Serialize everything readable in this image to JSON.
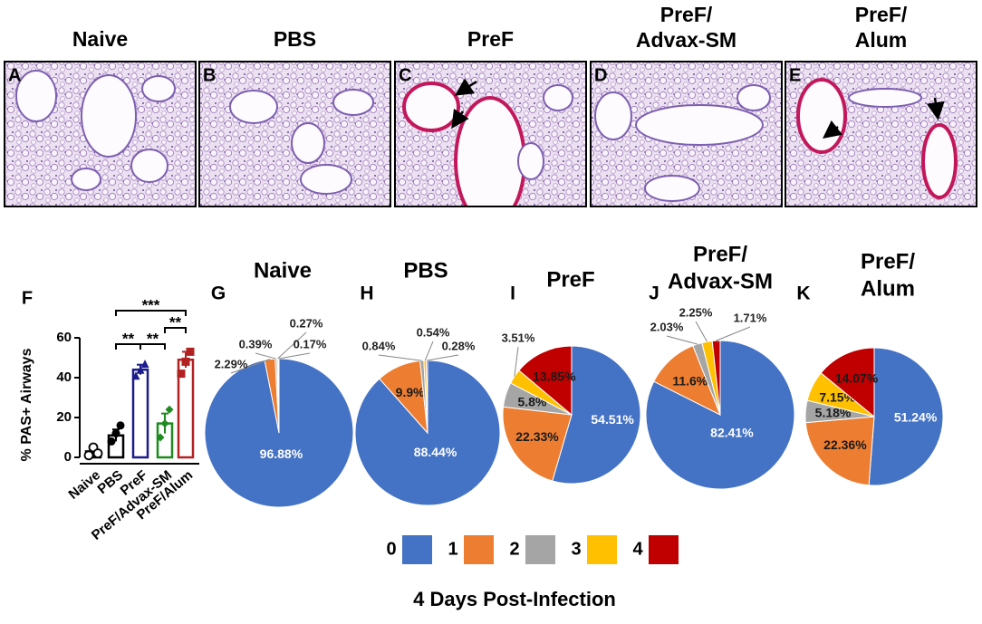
{
  "micrographs": [
    {
      "letter": "A",
      "title": [
        "Naive"
      ]
    },
    {
      "letter": "B",
      "title": [
        "PBS"
      ]
    },
    {
      "letter": "C",
      "title": [
        "PreF"
      ]
    },
    {
      "letter": "D",
      "title": [
        "PreF/",
        "Advax-SM"
      ]
    },
    {
      "letter": "E",
      "title": [
        "PreF/",
        "Alum"
      ]
    }
  ],
  "chart_data": [
    {
      "type": "bar",
      "letter": "F",
      "ylabel": "% PAS+ Airways",
      "categories": [
        "Naive",
        "PBS",
        "PreF",
        "PreF/Advax-SM",
        "PreF/Alum"
      ],
      "values": [
        3,
        11,
        44,
        17,
        49
      ],
      "errors": [
        1.5,
        3,
        2.5,
        5,
        4
      ],
      "points": [
        [
          1,
          5,
          2
        ],
        [
          8,
          12,
          16
        ],
        [
          41,
          44,
          47
        ],
        [
          10,
          17,
          24
        ],
        [
          42,
          48,
          53
        ]
      ],
      "colors": [
        "#000000",
        "#000000",
        "#1c1c8c",
        "#1f8a1f",
        "#b22222"
      ],
      "markers": [
        "open-circle",
        "circle",
        "triangle",
        "diamond",
        "square"
      ],
      "ylim": [
        0,
        60
      ],
      "yticks": [
        0,
        20,
        40,
        60
      ],
      "comparisons": [
        {
          "label": "***",
          "from": "PBS",
          "to": "PreF/Alum"
        },
        {
          "label": "**",
          "from": "PBS",
          "to": "PreF"
        },
        {
          "label": "**",
          "from": "PreF",
          "to": "PreF/Advax-SM"
        },
        {
          "label": "**",
          "from": "PreF/Advax-SM",
          "to": "PreF/Alum"
        }
      ]
    },
    {
      "type": "pie",
      "letter": "G",
      "title": [
        "Naive"
      ],
      "values": [
        96.88,
        2.29,
        0.39,
        0.27,
        0.17
      ],
      "value_labels": [
        "96.88%",
        "2.29%",
        "0.39%",
        "0.27%",
        "0.17%"
      ]
    },
    {
      "type": "pie",
      "letter": "H",
      "title": [
        "PBS"
      ],
      "values": [
        88.44,
        9.9,
        0.84,
        0.54,
        0.28
      ],
      "value_labels": [
        "88.44%",
        "9.9%",
        "0.84%",
        "0.54%",
        "0.28%"
      ]
    },
    {
      "type": "pie",
      "letter": "I",
      "title": [
        "PreF"
      ],
      "values": [
        54.51,
        22.33,
        5.8,
        3.51,
        13.85
      ],
      "value_labels": [
        "54.51%",
        "22.33%",
        "5.8%",
        "3.51%",
        "13.85%"
      ]
    },
    {
      "type": "pie",
      "letter": "J",
      "title": [
        "PreF/",
        "Advax-SM"
      ],
      "values": [
        82.41,
        11.6,
        2.03,
        2.25,
        1.71
      ],
      "value_labels": [
        "82.41%",
        "11.6%",
        "2.03%",
        "2.25%",
        "1.71%"
      ]
    },
    {
      "type": "pie",
      "letter": "K",
      "title": [
        "PreF/",
        "Alum"
      ],
      "values": [
        51.24,
        22.36,
        5.18,
        7.15,
        14.07
      ],
      "value_labels": [
        "51.24%",
        "22.36%",
        "5.18%",
        "7.15%",
        "14.07%"
      ]
    }
  ],
  "legend": {
    "labels": [
      "0",
      "1",
      "2",
      "3",
      "4"
    ],
    "colors": [
      "#4472c4",
      "#ed7d31",
      "#a5a5a5",
      "#ffc000",
      "#c00000"
    ]
  },
  "footer": "4 Days Post-Infection"
}
